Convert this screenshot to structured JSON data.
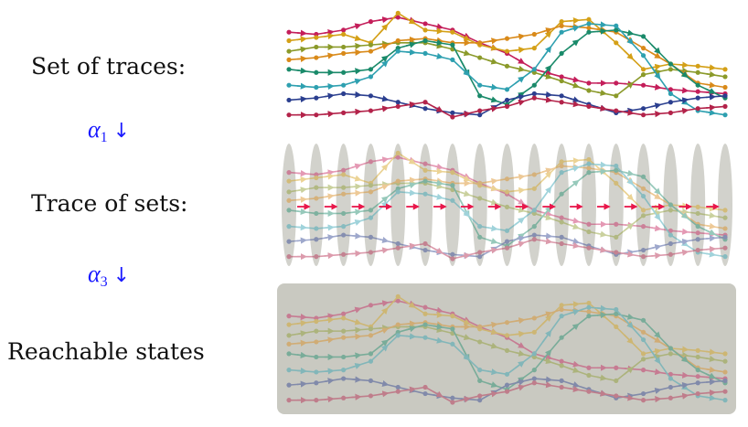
{
  "labels": {
    "set_of_traces": "Set of traces:",
    "alpha1": {
      "symbol": "α",
      "sub": "1",
      "arrow": "↓"
    },
    "trace_of_sets": "Trace of sets:",
    "alpha3": {
      "symbol": "α",
      "sub": "3",
      "arrow": "↓"
    },
    "reachable_states": "Reachable states"
  },
  "colors": {
    "alpha_text": "#1a1aff",
    "set_ellipse": "#d2d2cc",
    "reachable_box": "#c9c9c1",
    "sequence_arrow": "#e8174a"
  },
  "traces": [
    {
      "color": "#c41e5a",
      "y": [
        0.2,
        0.22,
        0.18,
        0.1,
        0.06,
        0.12,
        0.18,
        0.3,
        0.4,
        0.55,
        0.62,
        0.68,
        0.68,
        0.7,
        0.74,
        0.76,
        0.78
      ]
    },
    {
      "color": "#d4a017",
      "y": [
        0.28,
        0.25,
        0.22,
        0.3,
        0.02,
        0.18,
        0.2,
        0.32,
        0.38,
        0.35,
        0.1,
        0.08,
        0.3,
        0.55,
        0.5,
        0.52,
        0.55
      ]
    },
    {
      "color": "#8b9a2a",
      "y": [
        0.38,
        0.34,
        0.34,
        0.32,
        0.3,
        0.3,
        0.36,
        0.44,
        0.52,
        0.58,
        0.66,
        0.75,
        0.8,
        0.6,
        0.55,
        0.58,
        0.62
      ]
    },
    {
      "color": "#d98a1a",
      "y": [
        0.46,
        0.44,
        0.4,
        0.38,
        0.28,
        0.26,
        0.3,
        0.3,
        0.26,
        0.22,
        0.14,
        0.16,
        0.2,
        0.35,
        0.5,
        0.68,
        0.72
      ]
    },
    {
      "color": "#1a8a6a",
      "y": [
        0.55,
        0.58,
        0.58,
        0.55,
        0.35,
        0.28,
        0.32,
        0.8,
        0.88,
        0.7,
        0.4,
        0.2,
        0.18,
        0.24,
        0.5,
        0.7,
        0.82
      ]
    },
    {
      "color": "#2ea0b0",
      "y": [
        0.7,
        0.72,
        0.7,
        0.62,
        0.38,
        0.4,
        0.46,
        0.7,
        0.74,
        0.55,
        0.2,
        0.12,
        0.14,
        0.42,
        0.78,
        0.94,
        0.98
      ]
    },
    {
      "color": "#2b3f8f",
      "y": [
        0.84,
        0.82,
        0.78,
        0.8,
        0.86,
        0.92,
        0.96,
        0.98,
        0.84,
        0.78,
        0.8,
        0.88,
        0.96,
        0.92,
        0.86,
        0.82,
        0.8
      ]
    },
    {
      "color": "#b3234a",
      "y": [
        0.98,
        0.98,
        0.96,
        0.94,
        0.9,
        0.86,
        1.0,
        0.94,
        0.9,
        0.82,
        0.86,
        0.9,
        0.94,
        0.98,
        0.96,
        0.92,
        0.9
      ]
    }
  ]
}
